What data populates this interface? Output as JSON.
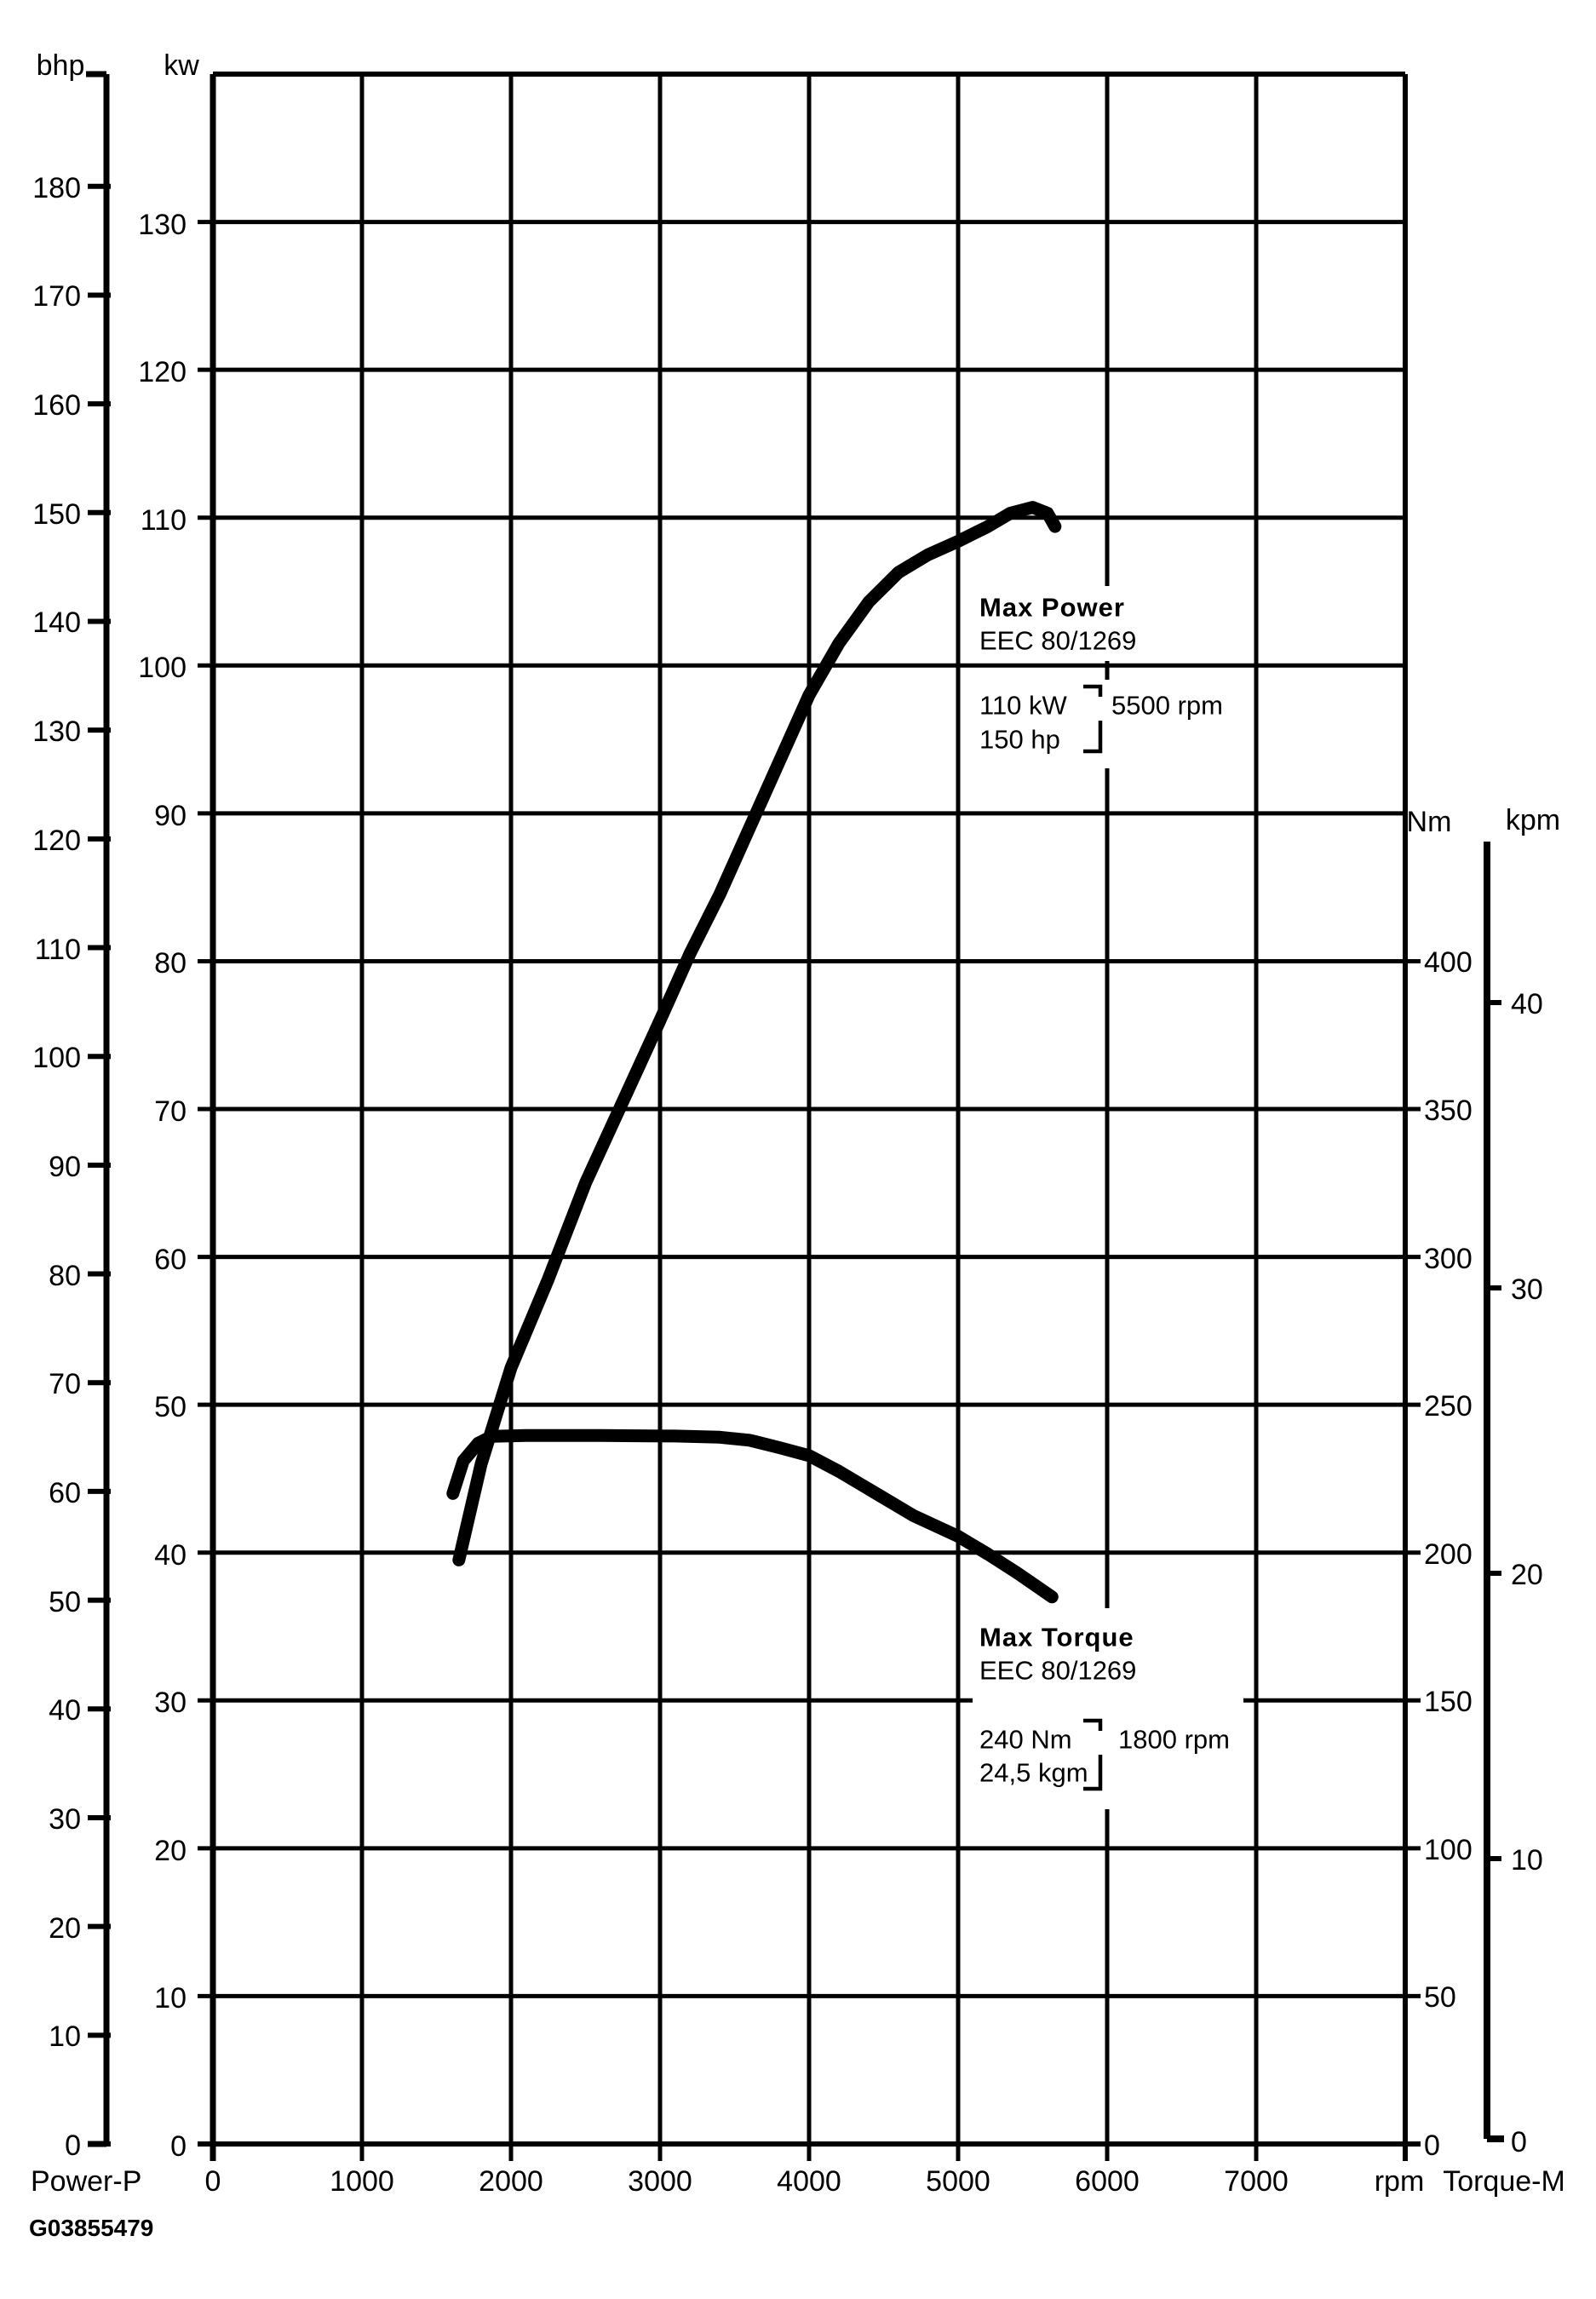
{
  "labels": {
    "bhp_axis": "bhp",
    "kw_axis": "kw",
    "nm_axis": "Nm",
    "kpm_axis": "kpm",
    "rpm_axis": "rpm",
    "power_legend": "Power-P",
    "torque_legend": "Torque-M",
    "figure_code": "G03855479"
  },
  "annotations": {
    "max_power": {
      "title": "Max Power",
      "standard": "EEC 80/1269",
      "value_primary": "110 kW",
      "value_secondary": "150 hp",
      "at_rpm": "5500 rpm"
    },
    "max_torque": {
      "title": "Max Torque",
      "standard": "EEC 80/1269",
      "value_primary": "240 Nm",
      "value_secondary": "24,5 kgm",
      "at_rpm": "1800 rpm"
    }
  },
  "chart_data": {
    "type": "line",
    "title": "Engine power and torque curves",
    "x_axis": {
      "label": "rpm",
      "range": [
        0,
        8000
      ],
      "gridline_step": 1000,
      "labeled_ticks": [
        0,
        1000,
        2000,
        3000,
        4000,
        5000,
        6000,
        7000
      ]
    },
    "y_axis_power_kw": {
      "label": "kw",
      "range": [
        0,
        140
      ],
      "gridline_step": 10,
      "labeled_ticks": [
        130,
        120,
        110,
        100,
        90,
        80,
        70,
        60,
        50,
        40,
        30,
        20,
        10,
        0
      ]
    },
    "y_axis_power_bhp": {
      "label": "bhp",
      "labeled_ticks": [
        180,
        170,
        160,
        150,
        140,
        130,
        120,
        110,
        100,
        90,
        80,
        70,
        60,
        50,
        40,
        30,
        20,
        10,
        0
      ]
    },
    "y_axis_torque_nm": {
      "label": "Nm",
      "labeled_ticks": [
        400,
        350,
        300,
        250,
        200,
        150,
        100,
        50,
        0
      ]
    },
    "y_axis_torque_kpm": {
      "label": "kpm",
      "labeled_ticks": [
        40,
        30,
        20,
        10,
        0
      ]
    },
    "grid": true,
    "legend_position": "below-axes",
    "series": [
      {
        "name": "Power-P",
        "unit": "kW",
        "x_unit": "rpm",
        "max_value": {
          "kw": 110,
          "hp": 150,
          "rpm": 5500
        },
        "points": [
          [
            1650,
            39.5
          ],
          [
            1800,
            46.0
          ],
          [
            2000,
            52.5
          ],
          [
            2250,
            58.5
          ],
          [
            2500,
            65.0
          ],
          [
            2750,
            70.5
          ],
          [
            3000,
            76.0
          ],
          [
            3200,
            80.5
          ],
          [
            3400,
            84.5
          ],
          [
            3600,
            89.0
          ],
          [
            3800,
            93.5
          ],
          [
            4000,
            98.0
          ],
          [
            4200,
            101.5
          ],
          [
            4400,
            104.3
          ],
          [
            4600,
            106.3
          ],
          [
            4800,
            107.5
          ],
          [
            5000,
            108.4
          ],
          [
            5200,
            109.4
          ],
          [
            5350,
            110.3
          ],
          [
            5500,
            110.7
          ],
          [
            5600,
            110.3
          ],
          [
            5650,
            109.4
          ]
        ]
      },
      {
        "name": "Torque-M",
        "unit": "Nm",
        "x_unit": "rpm",
        "max_value": {
          "nm": 240,
          "kgm": 24.5,
          "rpm": 1800
        },
        "points": [
          [
            1610,
            220.0
          ],
          [
            1680,
            231.0
          ],
          [
            1780,
            237.0
          ],
          [
            1870,
            239.3
          ],
          [
            2100,
            239.6
          ],
          [
            2600,
            239.6
          ],
          [
            3100,
            239.4
          ],
          [
            3400,
            239.0
          ],
          [
            3600,
            238.0
          ],
          [
            3800,
            235.5
          ],
          [
            4000,
            232.8
          ],
          [
            4200,
            227.5
          ],
          [
            4500,
            218.5
          ],
          [
            4700,
            212.5
          ],
          [
            5000,
            205.5
          ],
          [
            5200,
            199.5
          ],
          [
            5400,
            193.0
          ],
          [
            5630,
            185.0
          ]
        ]
      }
    ]
  }
}
